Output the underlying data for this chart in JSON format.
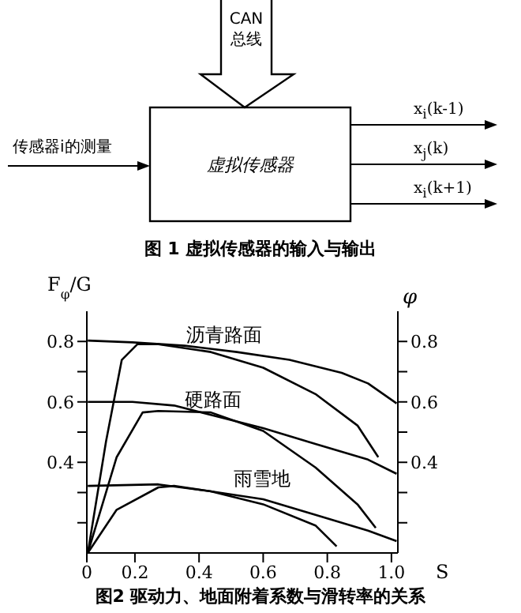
{
  "chart_data": [
    {
      "type": "other",
      "title": "图 1 虚拟传感器的输入与输出",
      "annotations": [
        "CAN 总线",
        "传感器i的测量",
        "虚拟传感器",
        "x$_{i}$(k-1)",
        "x$_{j}$(k)",
        "x$_{i}$(k+1)"
      ]
    },
    {
      "type": "line",
      "title": "图2 驱动力、地面附着系数与滑转率的关系",
      "xlabel": "S",
      "ylabel": "F$_{φ}$/G",
      "y2label": "φ",
      "xlim": [
        0.05,
        1.02
      ],
      "xticks": [
        {
          "value": 0.05,
          "label": "0"
        },
        0.2,
        0.4,
        0.6,
        0.8,
        {
          "value": 1,
          "label": "1.0"
        }
      ],
      "ylim": [
        0.1,
        0.9
      ],
      "yticks": [
        {
          "value": 0.2,
          "label": null
        },
        {
          "value": 0.3,
          "label": null
        },
        0.4,
        {
          "value": 0.5,
          "label": null
        },
        0.6,
        {
          "value": 0.7,
          "label": null
        },
        0.8
      ],
      "y2lim": [
        0.1,
        0.9
      ],
      "y2ticks": [
        {
          "value": 0.2,
          "label": null
        },
        {
          "value": 0.3,
          "label": null
        },
        0.4,
        {
          "value": 0.5,
          "label": null
        },
        0.6,
        {
          "value": 0.7,
          "label": null
        },
        0.8
      ],
      "grid": false,
      "legend": false,
      "marker": "none",
      "line_style": "solid",
      "series": [
        {
          "color": "#000000",
          "x": [
            0.053,
            0.192,
            0.355,
            0.518,
            0.682,
            0.845,
            0.927,
            1.016
          ],
          "values": [
            0.803,
            0.797,
            0.786,
            0.765,
            0.739,
            0.696,
            0.661,
            0.595
          ]
        },
        {
          "color": "#000000",
          "x": [
            0.053,
            0.11,
            0.159,
            0.208,
            0.273,
            0.437,
            0.6,
            0.763,
            0.894,
            0.959
          ],
          "values": [
            0.1,
            0.47,
            0.739,
            0.791,
            0.791,
            0.765,
            0.713,
            0.626,
            0.522,
            0.417
          ]
        },
        {
          "color": "#000000",
          "x": [
            0.053,
            0.192,
            0.322,
            0.437,
            0.6,
            0.763,
            0.927,
            1.016
          ],
          "values": [
            0.6,
            0.6,
            0.588,
            0.557,
            0.513,
            0.461,
            0.409,
            0.362
          ]
        },
        {
          "color": "#000000",
          "x": [
            0.053,
            0.143,
            0.224,
            0.273,
            0.437,
            0.6,
            0.763,
            0.894,
            0.951
          ],
          "values": [
            0.1,
            0.417,
            0.565,
            0.57,
            0.565,
            0.504,
            0.383,
            0.261,
            0.183
          ]
        },
        {
          "color": "#000000",
          "x": [
            0.053,
            0.273,
            0.437,
            0.6,
            0.763,
            0.927,
            1.016
          ],
          "values": [
            0.322,
            0.327,
            0.304,
            0.278,
            0.226,
            0.174,
            0.139
          ]
        },
        {
          "color": "#000000",
          "x": [
            0.053,
            0.143,
            0.273,
            0.322,
            0.437,
            0.6,
            0.763,
            0.829
          ],
          "values": [
            0.1,
            0.243,
            0.317,
            0.322,
            0.304,
            0.261,
            0.191,
            0.122
          ]
        }
      ],
      "annotations": [
        "沥青路面",
        "硬路面",
        "雨雪地"
      ]
    }
  ]
}
